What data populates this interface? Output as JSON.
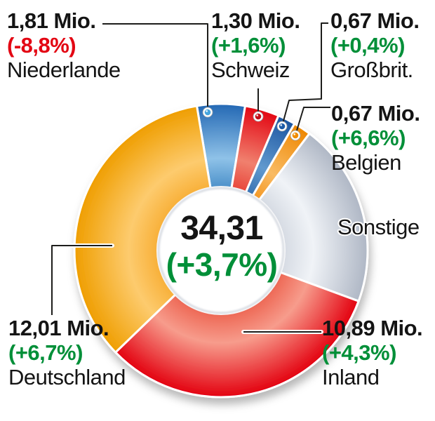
{
  "background": "#ffffff",
  "colors": {
    "positive": "#008f38",
    "negative": "#e30613",
    "text": "#141414",
    "callout_line": "#1d1d1b"
  },
  "chart_data": {
    "type": "pie",
    "subtype": "donut",
    "background": "#ffffff",
    "value_unit": "Mio.",
    "total_value": 34.31,
    "total_pct_change": 3.7,
    "center_label": {
      "value": "34,31",
      "pct_change": "(+3,7%)"
    },
    "segments": [
      {
        "id": "niederlande",
        "name": "Niederlande",
        "value_label": "1,81 Mio.",
        "value": 1.81,
        "pct_label": "(-8,8%)",
        "pct_change": -8.8,
        "trend": "negative",
        "start_angle": 350.5,
        "end_angle": 369.5,
        "colors": {
          "inner": "#4f93cb",
          "mid": "#8fc2e8",
          "outer": "#2368b4"
        },
        "dot_color": "#45a5de"
      },
      {
        "id": "schweiz",
        "name": "Schweiz",
        "value_label": "1,30 Mio.",
        "value": 1.3,
        "pct_label": "(+1,6%)",
        "pct_change": 1.6,
        "trend": "positive",
        "start_angle": 9.5,
        "end_angle": 23.1,
        "colors": {
          "inner": "#e94a3e",
          "mid": "#f0806e",
          "outer": "#e30613"
        },
        "dot_color": "#c20e1a"
      },
      {
        "id": "grossbrit",
        "name": "Großbrit.",
        "value_label": "0,67 Mio.",
        "value": 0.67,
        "pct_label": "(+0,4%)",
        "pct_change": 0.4,
        "trend": "positive",
        "start_angle": 23.1,
        "end_angle": 30.1,
        "colors": {
          "inner": "#3b75b4",
          "mid": "#6199ce",
          "outer": "#1b55a1"
        },
        "dot_color": "#1e5ca8"
      },
      {
        "id": "belgien",
        "name": "Belgien",
        "value_label": "0,67 Mio.",
        "value": 0.67,
        "pct_label": "(+6,6%)",
        "pct_change": 6.6,
        "trend": "positive",
        "start_angle": 30.1,
        "end_angle": 37.1,
        "colors": {
          "inner": "#f49a28",
          "mid": "#f9bb64",
          "outer": "#ee8700"
        },
        "dot_color": "#f08c00"
      },
      {
        "id": "sonstige",
        "name": "Sonstige",
        "value_label": "",
        "value": 6.96,
        "pct_label": "",
        "trend": "none",
        "start_angle": 37.1,
        "end_angle": 110.2,
        "colors": {
          "inner": "#d7dce4",
          "mid": "#f0f3f7",
          "outer": "#afb7c5"
        }
      },
      {
        "id": "inland",
        "name": "Inland",
        "value_label": "10,89 Mio.",
        "value": 10.89,
        "pct_label": "(+4,3%)",
        "pct_change": 4.3,
        "trend": "positive",
        "start_angle": 110.2,
        "end_angle": 226.0,
        "colors": {
          "inner": "#ee6a57",
          "mid": "#f79c8c",
          "outer": "#e3000f"
        }
      },
      {
        "id": "deutschland",
        "name": "Deutschland",
        "value_label": "12,01 Mio.",
        "value": 12.01,
        "pct_label": "(+6,7%)",
        "pct_change": 6.7,
        "trend": "positive",
        "start_angle": 226.0,
        "end_angle": 350.5,
        "colors": {
          "inner": "#f8b13b",
          "mid": "#fdcb6e",
          "outer": "#ef9e00"
        }
      }
    ]
  }
}
